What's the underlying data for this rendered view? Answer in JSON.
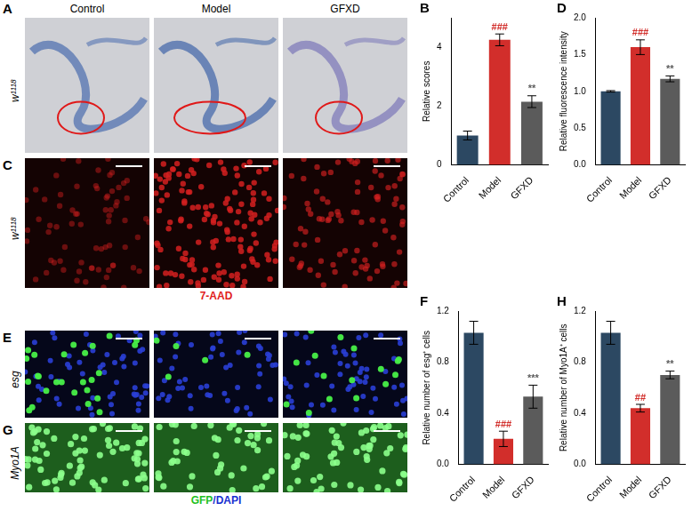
{
  "figure": {
    "columns": [
      "Control",
      "Model",
      "GFXD"
    ],
    "image_rows": [
      {
        "letter": "A",
        "row_label": "w¹¹¹⁸"
      },
      {
        "letter": "C",
        "row_label": "w¹¹¹⁸",
        "stain_label": "7-AAD"
      },
      {
        "letter": "E",
        "row_label": "esg"
      },
      {
        "letter": "G",
        "row_label": "Myo1A",
        "stain_label": "GFP/DAPI"
      }
    ]
  },
  "chart_data": [
    {
      "letter": "B",
      "type": "bar",
      "ylabel": "Relative scores",
      "categories": [
        "Control",
        "Model",
        "GFXD"
      ],
      "values": [
        1.0,
        4.25,
        2.15
      ],
      "errors": [
        0.15,
        0.2,
        0.2
      ],
      "significance": [
        null,
        "###",
        "**"
      ],
      "colors": [
        "#2c4862",
        "#d22e2b",
        "#5b5b5b"
      ],
      "ylim": [
        0,
        5
      ],
      "yticks": [
        0,
        2,
        4
      ],
      "grid": false
    },
    {
      "letter": "D",
      "type": "bar",
      "ylabel": "Relative fluorescence intensity",
      "categories": [
        "Control",
        "Model",
        "GFXD"
      ],
      "values": [
        1.0,
        1.6,
        1.17
      ],
      "errors": [
        0.01,
        0.1,
        0.04
      ],
      "significance": [
        null,
        "###",
        "**"
      ],
      "colors": [
        "#2c4862",
        "#d22e2b",
        "#5b5b5b"
      ],
      "ylim": [
        0,
        2
      ],
      "yticks": [
        {
          "value": 0,
          "label": "0.0"
        },
        {
          "value": 0.5,
          "label": "0.5"
        },
        {
          "value": 1,
          "label": "1.0"
        },
        {
          "value": 1.5,
          "label": "1.5"
        },
        {
          "value": 2,
          "label": "2.0"
        }
      ],
      "grid": false
    },
    {
      "letter": "F",
      "type": "bar",
      "ylabel": "Relative number of esg⁺ cells",
      "categories": [
        "Control",
        "Model",
        "GFXD"
      ],
      "values": [
        1.03,
        0.2,
        0.53
      ],
      "errors": [
        0.09,
        0.06,
        0.09
      ],
      "significance": [
        null,
        "###",
        "***"
      ],
      "colors": [
        "#2c4862",
        "#d22e2b",
        "#5b5b5b"
      ],
      "ylim": [
        0,
        1.2
      ],
      "yticks": [
        {
          "value": 0,
          "label": "0.0"
        },
        {
          "value": 0.4,
          "label": "0.4"
        },
        {
          "value": 0.8,
          "label": "0.8"
        },
        {
          "value": 1.2,
          "label": "1.2"
        }
      ],
      "grid": false
    },
    {
      "letter": "H",
      "type": "bar",
      "ylabel": "Relative number of Myo1A⁺ cells",
      "categories": [
        "Control",
        "Model",
        "GFXD"
      ],
      "values": [
        1.03,
        0.44,
        0.7
      ],
      "errors": [
        0.09,
        0.03,
        0.03
      ],
      "significance": [
        null,
        "##",
        "**"
      ],
      "colors": [
        "#2c4862",
        "#d22e2b",
        "#5b5b5b"
      ],
      "ylim": [
        0,
        1.2
      ],
      "yticks": [
        {
          "value": 0,
          "label": "0.0"
        },
        {
          "value": 0.4,
          "label": "0.4"
        },
        {
          "value": 0.8,
          "label": "0.8"
        },
        {
          "value": 1.2,
          "label": "1.2"
        }
      ],
      "grid": false
    }
  ]
}
